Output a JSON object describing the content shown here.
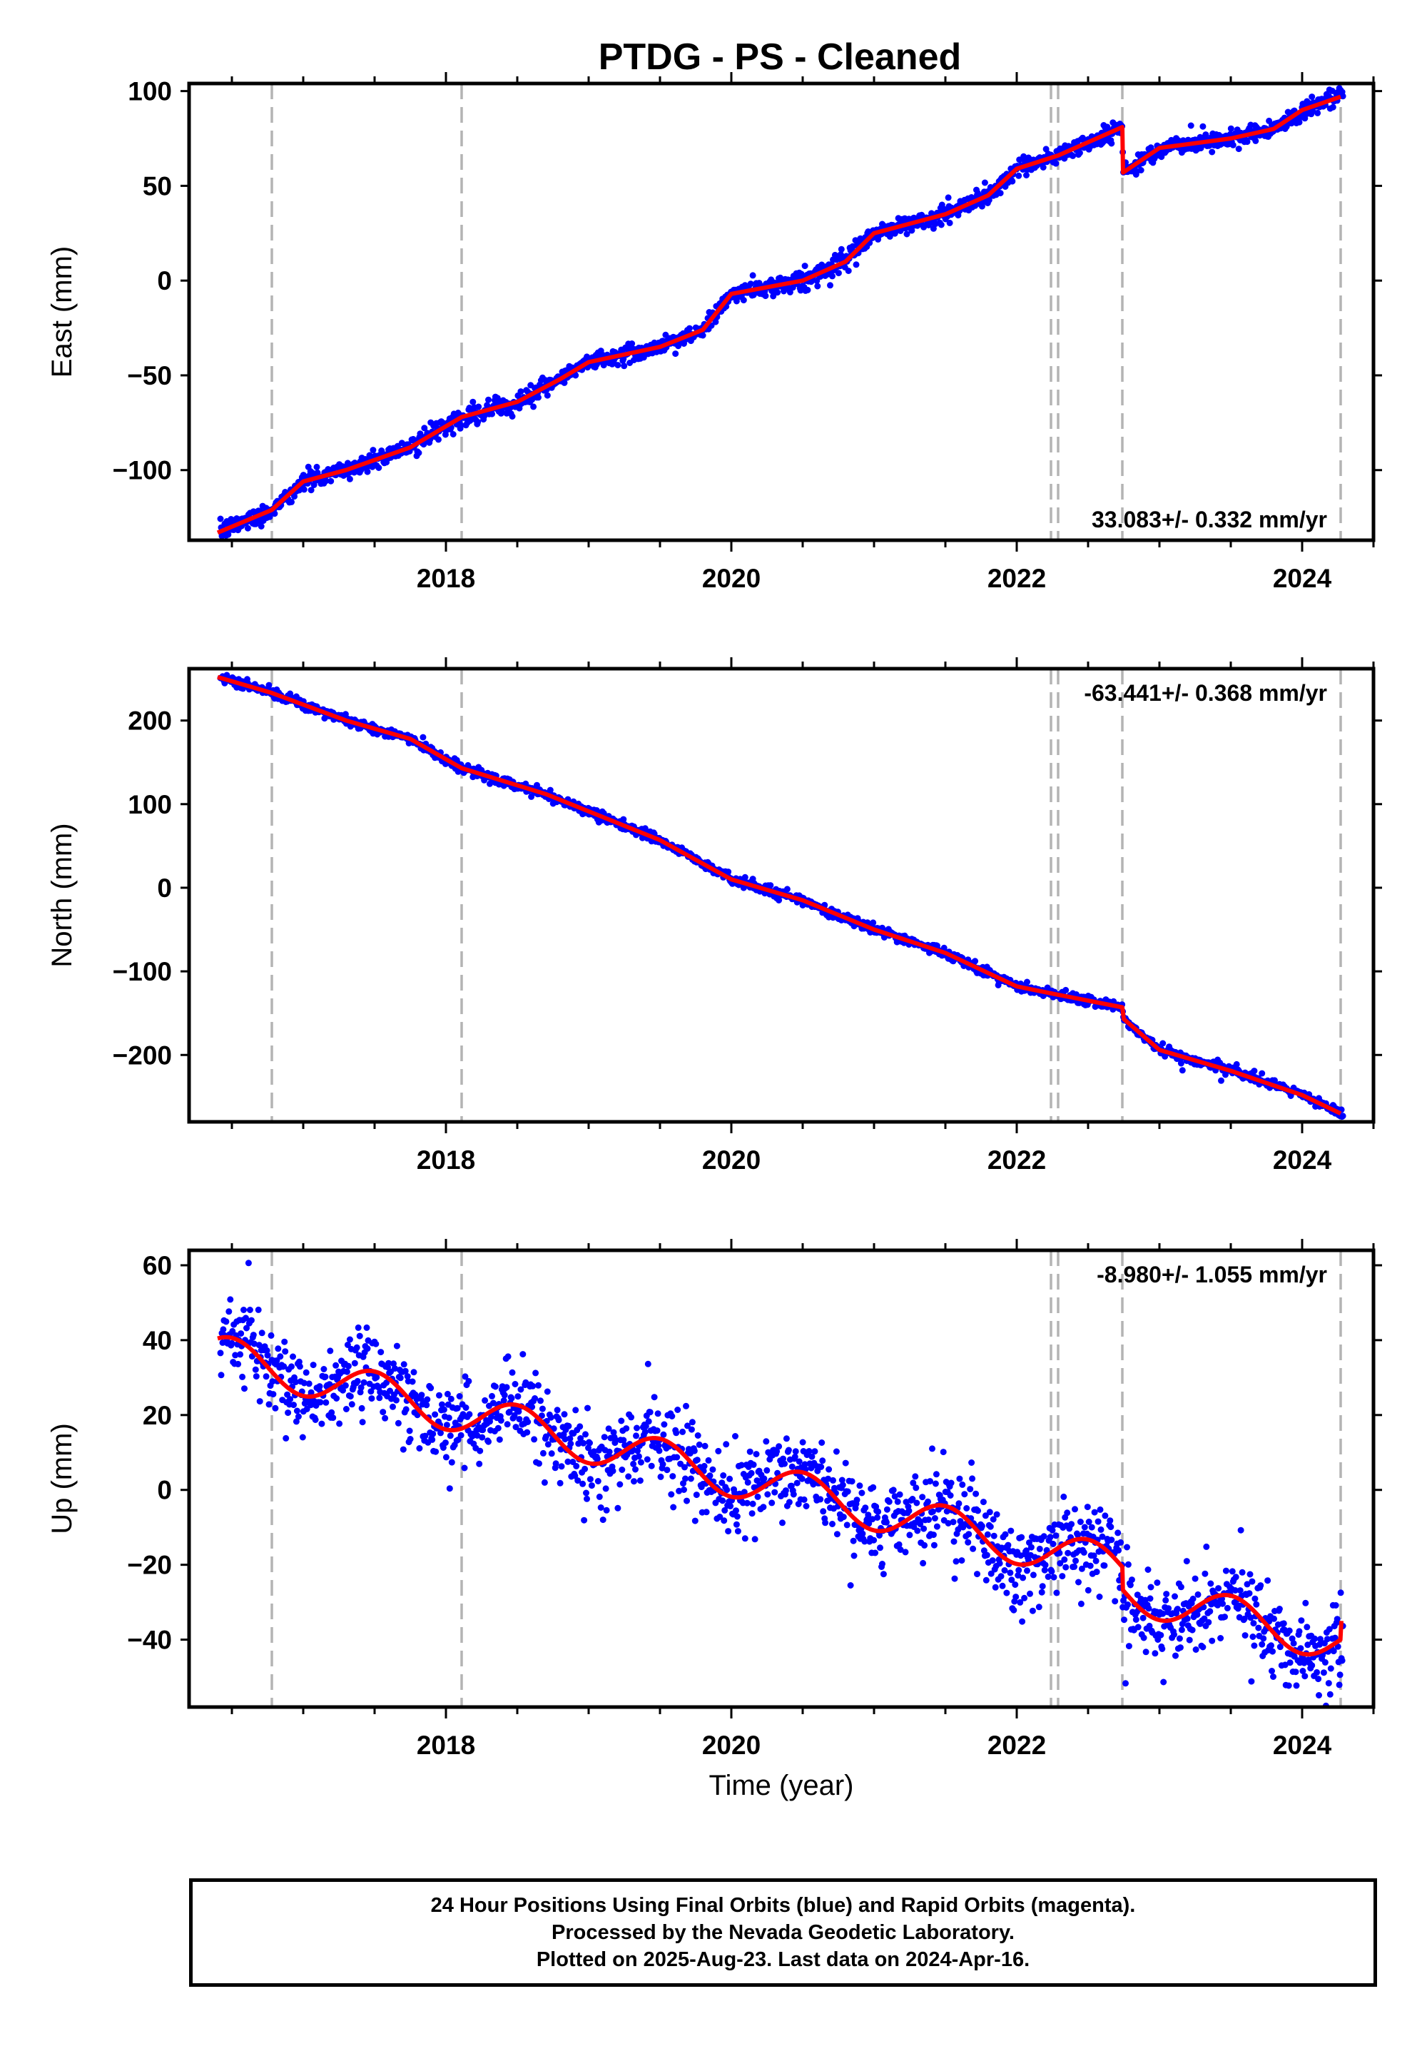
{
  "chart_data": {
    "title": "PTDG  - PS - Cleaned",
    "xlabel": "Time (year)",
    "x_ticks": [
      2018,
      2020,
      2022,
      2024
    ],
    "x_range": [
      2016.2,
      2024.5
    ],
    "vertical_markers": [
      2016.78,
      2018.11,
      2022.24,
      2022.29,
      2022.74,
      2024.27
    ],
    "colors": {
      "final_orbits": "#0000ff",
      "model": "#ff0000",
      "markers": "#b4b4b4"
    },
    "panels": [
      {
        "type": "scatter",
        "name": "east",
        "ylabel": "East (mm)",
        "ylim": [
          -137,
          104
        ],
        "yticks": [
          100,
          50,
          0,
          -50,
          -100
        ],
        "rate": "33.083+/- 0.332 mm/yr",
        "rate_position": "bottom-right",
        "trend_points": [
          [
            2016.4,
            -133
          ],
          [
            2016.78,
            -121
          ],
          [
            2017.0,
            -106
          ],
          [
            2017.3,
            -100
          ],
          [
            2017.75,
            -88
          ],
          [
            2018.11,
            -72
          ],
          [
            2018.5,
            -64
          ],
          [
            2018.8,
            -52
          ],
          [
            2019.0,
            -43
          ],
          [
            2019.5,
            -35
          ],
          [
            2019.8,
            -26
          ],
          [
            2020.0,
            -7
          ],
          [
            2020.5,
            0
          ],
          [
            2020.8,
            10
          ],
          [
            2021.0,
            25
          ],
          [
            2021.5,
            35
          ],
          [
            2021.8,
            45
          ],
          [
            2022.0,
            59
          ],
          [
            2022.29,
            66
          ],
          [
            2022.74,
            81
          ],
          [
            2022.745,
            57
          ],
          [
            2023.0,
            70
          ],
          [
            2023.5,
            75
          ],
          [
            2023.8,
            80
          ],
          [
            2024.0,
            90
          ],
          [
            2024.27,
            97
          ]
        ],
        "noise": 2.4
      },
      {
        "type": "scatter",
        "name": "north",
        "ylabel": "North (mm)",
        "ylim": [
          -280,
          262
        ],
        "yticks": [
          200,
          100,
          0,
          -100,
          -200
        ],
        "rate": "-63.441+/- 0.368 mm/yr",
        "rate_position": "top-right",
        "trend_points": [
          [
            2016.4,
            252
          ],
          [
            2016.78,
            233
          ],
          [
            2017.3,
            200
          ],
          [
            2017.75,
            178
          ],
          [
            2018.11,
            143
          ],
          [
            2018.7,
            112
          ],
          [
            2019.5,
            57
          ],
          [
            2020.0,
            10
          ],
          [
            2020.5,
            -15
          ],
          [
            2021.0,
            -50
          ],
          [
            2021.5,
            -78
          ],
          [
            2022.0,
            -118
          ],
          [
            2022.29,
            -128
          ],
          [
            2022.74,
            -143
          ],
          [
            2022.75,
            -157
          ],
          [
            2023.0,
            -194
          ],
          [
            2023.5,
            -219
          ],
          [
            2024.0,
            -248
          ],
          [
            2024.27,
            -270
          ]
        ],
        "noise": 2.8
      },
      {
        "type": "scatter",
        "name": "up",
        "ylabel": "Up (mm)",
        "ylim": [
          -58,
          64
        ],
        "yticks": [
          60,
          40,
          20,
          0,
          -20,
          -40
        ],
        "rate": "-8.980+/- 1.055 mm/yr",
        "rate_position": "top-right",
        "model": {
          "start": 2016.4,
          "end": 2024.27,
          "base": 36,
          "slope": -8.98,
          "amp": 5.5,
          "phase_peak": 0.5,
          "step_at": 2022.74,
          "step": -6
        },
        "noise": 5.5
      }
    ]
  },
  "footer": {
    "line1": "24 Hour Positions Using Final Orbits (blue) and Rapid Orbits (magenta).",
    "line2": "Processed by the Nevada Geodetic Laboratory.",
    "line3": "Plotted on 2025-Aug-23. Last data on 2024-Apr-16."
  }
}
